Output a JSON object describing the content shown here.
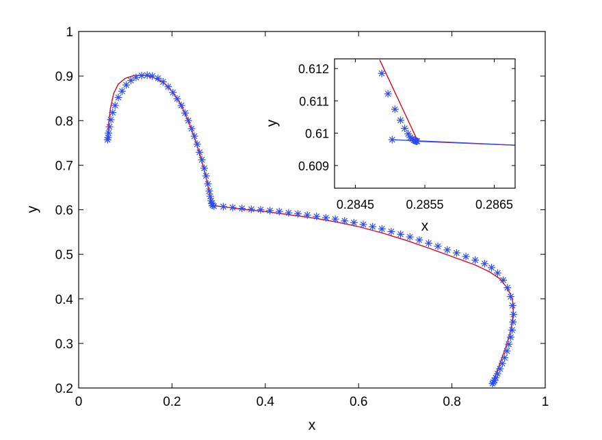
{
  "chart_data": [
    {
      "type": "line",
      "title": "",
      "xlabel": "x",
      "ylabel": "y",
      "xlim": [
        0,
        1
      ],
      "ylim": [
        0.2,
        1
      ],
      "xticks": [
        "0",
        "0.2",
        "0.4",
        "0.6",
        "0.8",
        "1"
      ],
      "yticks": [
        "0.2",
        "0.3",
        "0.4",
        "0.5",
        "0.6",
        "0.7",
        "0.8",
        "0.9",
        "1"
      ],
      "grid": false,
      "legend": "none",
      "series": [
        {
          "style": "solid red line",
          "color": "#e0001b",
          "x": [
            0.062,
            0.064,
            0.068,
            0.075,
            0.085,
            0.1,
            0.118,
            0.138,
            0.16,
            0.182,
            0.2,
            0.218,
            0.235,
            0.25,
            0.262,
            0.272,
            0.28,
            0.2855,
            0.3,
            0.35,
            0.4,
            0.45,
            0.5,
            0.55,
            0.6,
            0.65,
            0.7,
            0.75,
            0.8,
            0.85,
            0.88,
            0.903,
            0.918,
            0.928,
            0.932,
            0.93,
            0.925,
            0.915,
            0.903,
            0.893,
            0.888
          ],
          "y": [
            0.757,
            0.79,
            0.827,
            0.861,
            0.882,
            0.895,
            0.901,
            0.902,
            0.897,
            0.885,
            0.866,
            0.838,
            0.8,
            0.757,
            0.717,
            0.677,
            0.64,
            0.61,
            0.608,
            0.601,
            0.596,
            0.589,
            0.582,
            0.573,
            0.562,
            0.548,
            0.532,
            0.514,
            0.495,
            0.476,
            0.461,
            0.445,
            0.425,
            0.405,
            0.385,
            0.355,
            0.325,
            0.29,
            0.255,
            0.228,
            0.21
          ]
        },
        {
          "style": "blue asterisk markers",
          "color": "#2c4bf2",
          "x": [
            0.062,
            0.063,
            0.064,
            0.066,
            0.069,
            0.073,
            0.078,
            0.085,
            0.093,
            0.102,
            0.112,
            0.123,
            0.135,
            0.147,
            0.158,
            0.17,
            0.181,
            0.192,
            0.202,
            0.211,
            0.22,
            0.228,
            0.235,
            0.242,
            0.248,
            0.254,
            0.259,
            0.264,
            0.269,
            0.273,
            0.277,
            0.28,
            0.282,
            0.284,
            0.285,
            0.287,
            0.29,
            0.31,
            0.33,
            0.35,
            0.37,
            0.39,
            0.41,
            0.43,
            0.45,
            0.47,
            0.49,
            0.51,
            0.53,
            0.55,
            0.57,
            0.59,
            0.61,
            0.63,
            0.65,
            0.67,
            0.69,
            0.71,
            0.73,
            0.75,
            0.77,
            0.79,
            0.81,
            0.83,
            0.85,
            0.87,
            0.885,
            0.898,
            0.91,
            0.919,
            0.926,
            0.93,
            0.932,
            0.931,
            0.929,
            0.926,
            0.922,
            0.918,
            0.913,
            0.908,
            0.903,
            0.898,
            0.894,
            0.891,
            0.889,
            0.887
          ],
          "y": [
            0.757,
            0.762,
            0.772,
            0.786,
            0.802,
            0.818,
            0.834,
            0.852,
            0.866,
            0.88,
            0.89,
            0.897,
            0.901,
            0.902,
            0.9,
            0.895,
            0.887,
            0.876,
            0.863,
            0.849,
            0.834,
            0.817,
            0.8,
            0.782,
            0.765,
            0.747,
            0.729,
            0.712,
            0.693,
            0.676,
            0.658,
            0.642,
            0.63,
            0.62,
            0.614,
            0.61,
            0.608,
            0.607,
            0.605,
            0.603,
            0.601,
            0.6,
            0.598,
            0.596,
            0.593,
            0.591,
            0.588,
            0.585,
            0.582,
            0.579,
            0.575,
            0.571,
            0.567,
            0.562,
            0.557,
            0.551,
            0.545,
            0.539,
            0.532,
            0.525,
            0.518,
            0.51,
            0.503,
            0.495,
            0.487,
            0.479,
            0.47,
            0.458,
            0.442,
            0.425,
            0.405,
            0.385,
            0.365,
            0.348,
            0.33,
            0.314,
            0.298,
            0.283,
            0.268,
            0.255,
            0.243,
            0.232,
            0.223,
            0.217,
            0.213,
            0.21
          ]
        }
      ]
    },
    {
      "type": "line",
      "title": "",
      "xlabel": "x",
      "ylabel": "y",
      "xlim": [
        0.2842,
        0.2868
      ],
      "ylim": [
        0.6083,
        0.6123
      ],
      "xticks": [
        "0.2845",
        "0.2855",
        "0.2865"
      ],
      "yticks": [
        "0.609",
        "0.61",
        "0.611",
        "0.612"
      ],
      "grid": false,
      "legend": "none",
      "series": [
        {
          "style": "solid red line",
          "color": "#e0001b",
          "x": [
            0.28485,
            0.2854,
            0.2868
          ],
          "y": [
            0.61227,
            0.60975,
            0.60963
          ]
        },
        {
          "style": "solid blue line",
          "color": "#2c4bf2",
          "x": [
            0.28503,
            0.2868
          ],
          "y": [
            0.6098,
            0.60963
          ]
        },
        {
          "style": "blue asterisk markers",
          "color": "#2c4bf2",
          "x": [
            0.28503,
            0.28488,
            0.28497,
            0.28507,
            0.28515,
            0.28521,
            0.28526,
            0.28529,
            0.28532,
            0.28534,
            0.28536,
            0.28537,
            0.28538,
            0.28539
          ],
          "y": [
            0.6098,
            0.61185,
            0.61122,
            0.61074,
            0.6104,
            0.61015,
            0.60998,
            0.60987,
            0.60982,
            0.60979,
            0.60977,
            0.60976,
            0.60975,
            0.60975
          ]
        }
      ]
    }
  ]
}
